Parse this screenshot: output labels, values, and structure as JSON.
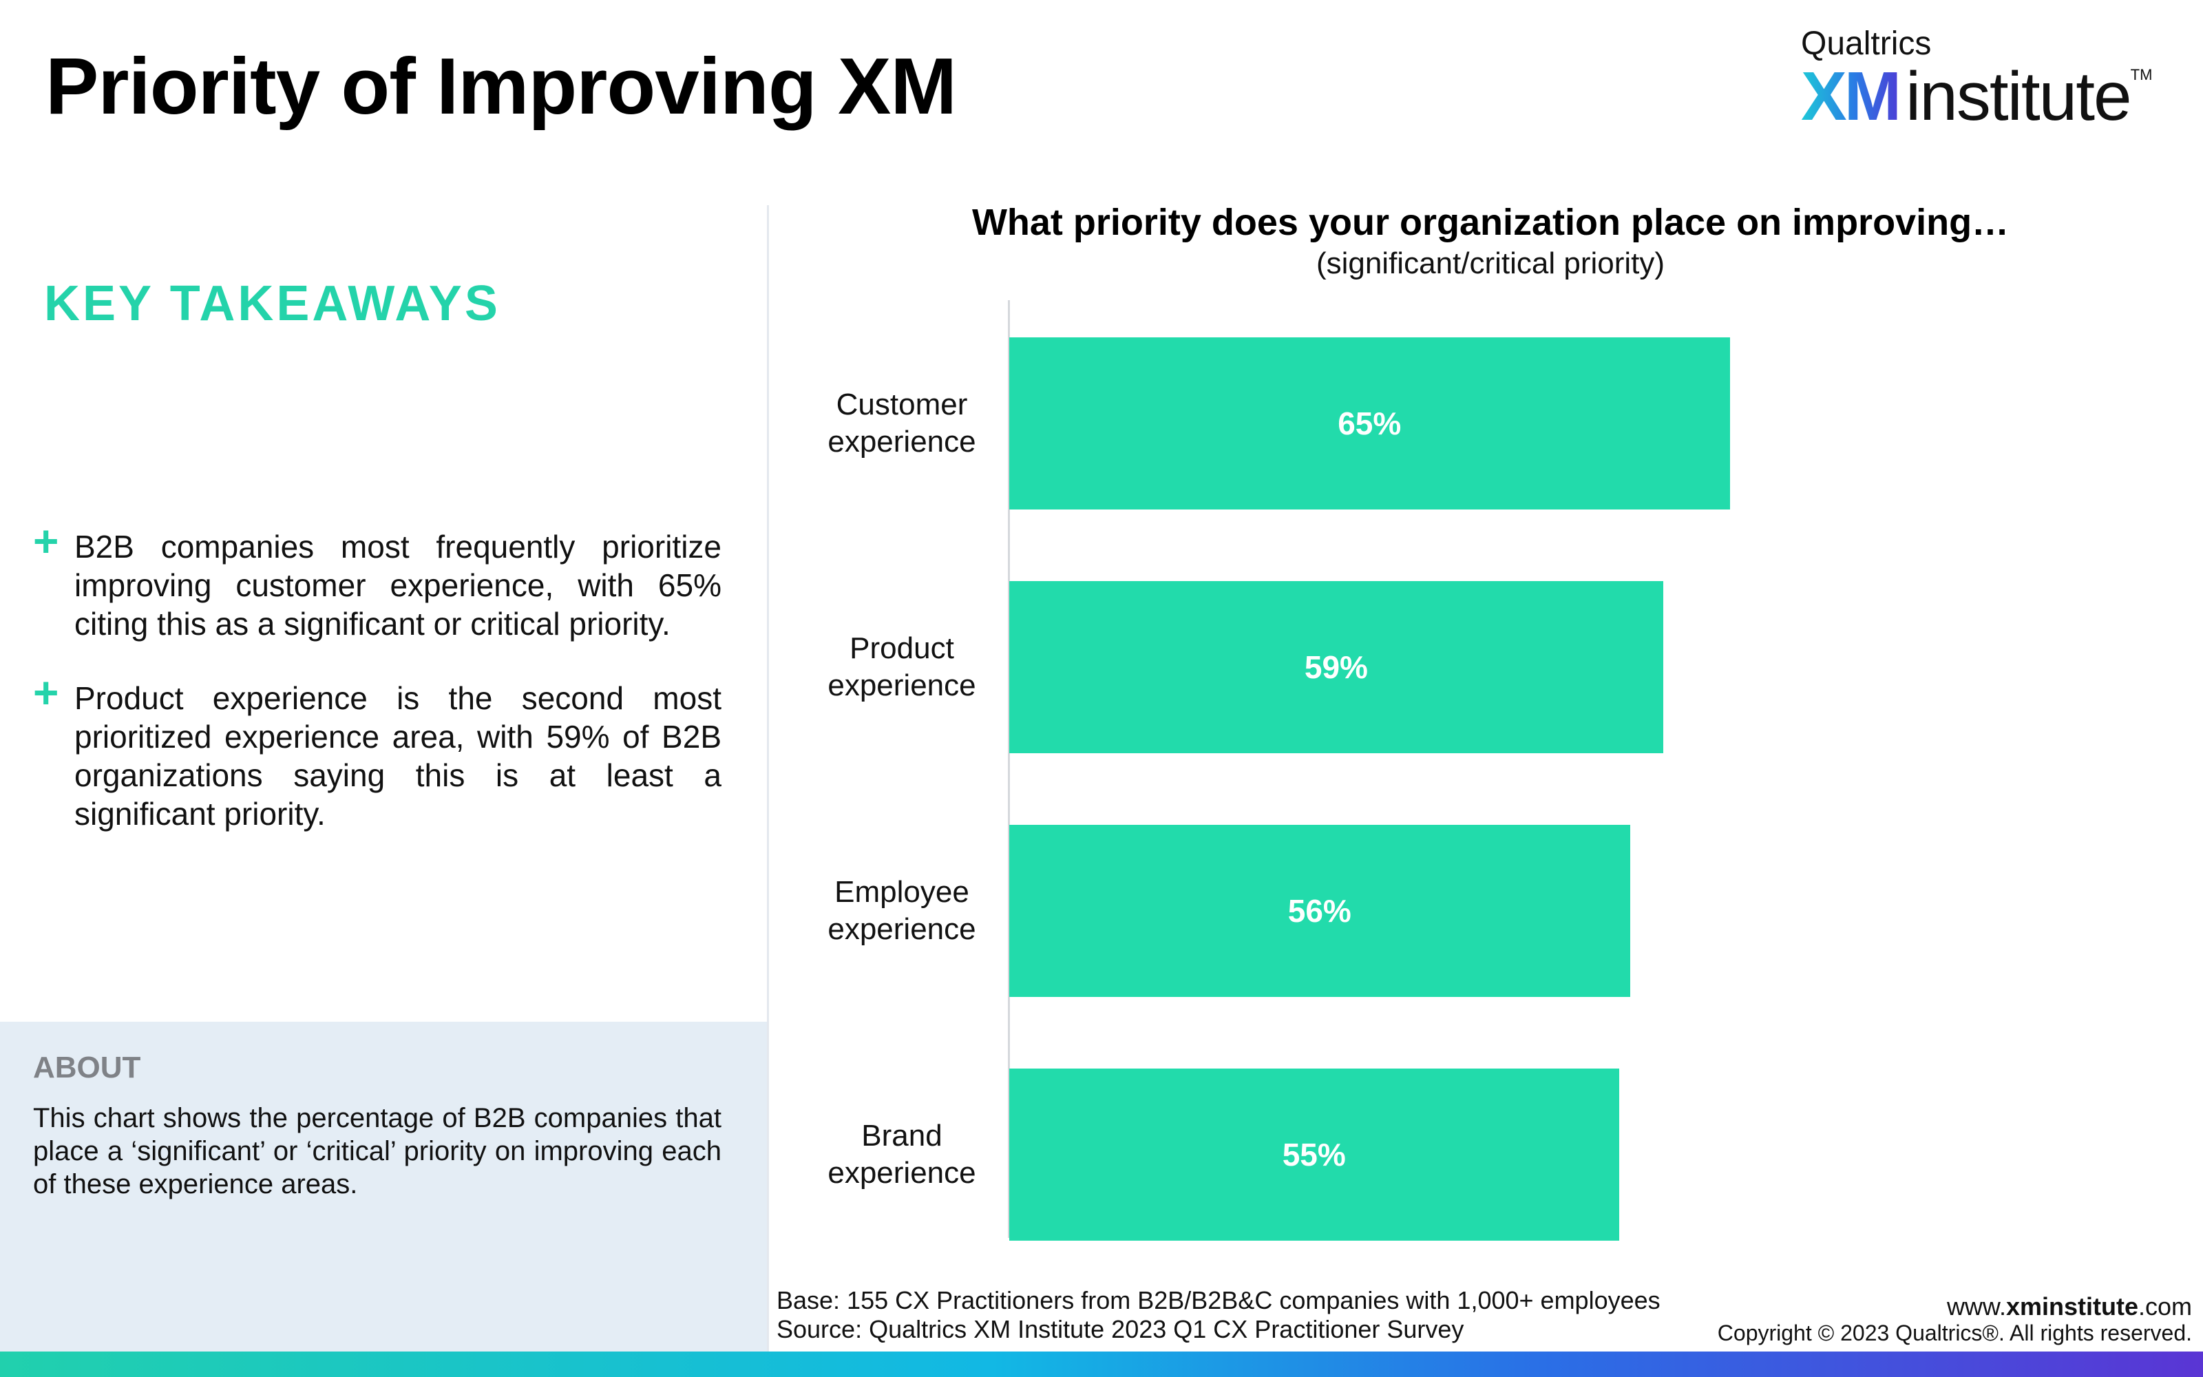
{
  "header": {
    "title": "Priority of Improving XM",
    "logo": {
      "top": "Qualtrics",
      "xm": "XM",
      "institute": "institute",
      "tm": "TM"
    }
  },
  "takeaways": {
    "heading": "KEY TAKEAWAYS",
    "items": [
      "B2B companies most frequently prioritize improving customer experience, with 65% citing this as a significant or critical priority.",
      "Product experience is the second most prioritized experience area, with 59% of B2B organizations saying this is at least a significant priority."
    ]
  },
  "about": {
    "heading": "ABOUT",
    "text": "This chart shows the percentage of B2B companies that place a ‘significant’ or ‘critical’ priority on improving each of these experience areas."
  },
  "chart_data": {
    "type": "bar",
    "orientation": "horizontal",
    "title": "What priority does your organization place on improving…",
    "subtitle": "(significant/critical priority)",
    "categories": [
      "Customer experience",
      "Product experience",
      "Employee experience",
      "Brand experience"
    ],
    "category_lines": [
      [
        "Customer",
        "experience"
      ],
      [
        "Product",
        "experience"
      ],
      [
        "Employee",
        "experience"
      ],
      [
        "Brand",
        "experience"
      ]
    ],
    "values": [
      65,
      59,
      56,
      55
    ],
    "value_labels": [
      "65%",
      "59%",
      "56%",
      "55%"
    ],
    "bar_color": "#22dbab",
    "xlim": [
      0,
      100
    ],
    "grid": false
  },
  "footer": {
    "base": "Base: 155 CX Practitioners from B2B/B2B&C companies with 1,000+ employees",
    "source": "Source: Qualtrics XM Institute 2023 Q1 CX Practitioner Survey",
    "website_prefix": "www.",
    "website_bold": "xminstitute",
    "website_suffix": ".com",
    "copyright": "Copyright © 2023 Qualtrics®. All rights reserved."
  },
  "colors": {
    "accent": "#24d3aa",
    "about_bg": "#e4edf5"
  }
}
